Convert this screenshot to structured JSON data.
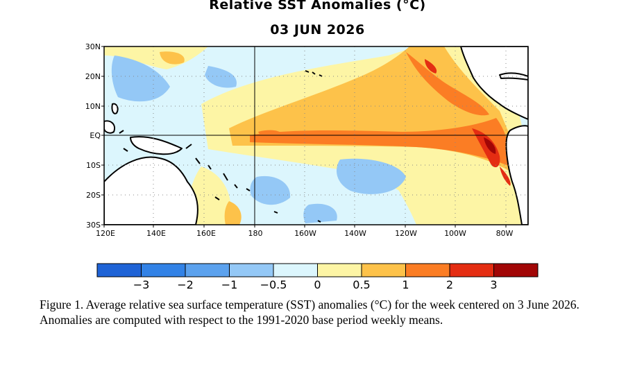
{
  "title": "Relative SST Anomalies (°C)",
  "date": "03 JUN 2026",
  "lat_labels": [
    "30N",
    "20N",
    "10N",
    "EQ",
    "10S",
    "20S",
    "30S"
  ],
  "lon_labels": [
    "120E",
    "140E",
    "160E",
    "180",
    "160W",
    "140W",
    "120W",
    "100W",
    "80W"
  ],
  "colorbar": {
    "colors": [
      "#1f63d6",
      "#3282e6",
      "#5ca2ee",
      "#94c8f6",
      "#dcf6fd",
      "#fdf5a5",
      "#fdc24a",
      "#fb7d24",
      "#e42d12",
      "#a10606"
    ],
    "tick_labels": [
      "−3",
      "−2",
      "−1",
      "−0.5",
      "0",
      "0.5",
      "1",
      "2",
      "3"
    ]
  },
  "caption": "Figure 1. Average relative sea surface temperature (SST) anomalies (°C) for the week centered on 3 June 2026.  Anomalies are computed with respect to the 1991-2020 base period weekly means."
}
